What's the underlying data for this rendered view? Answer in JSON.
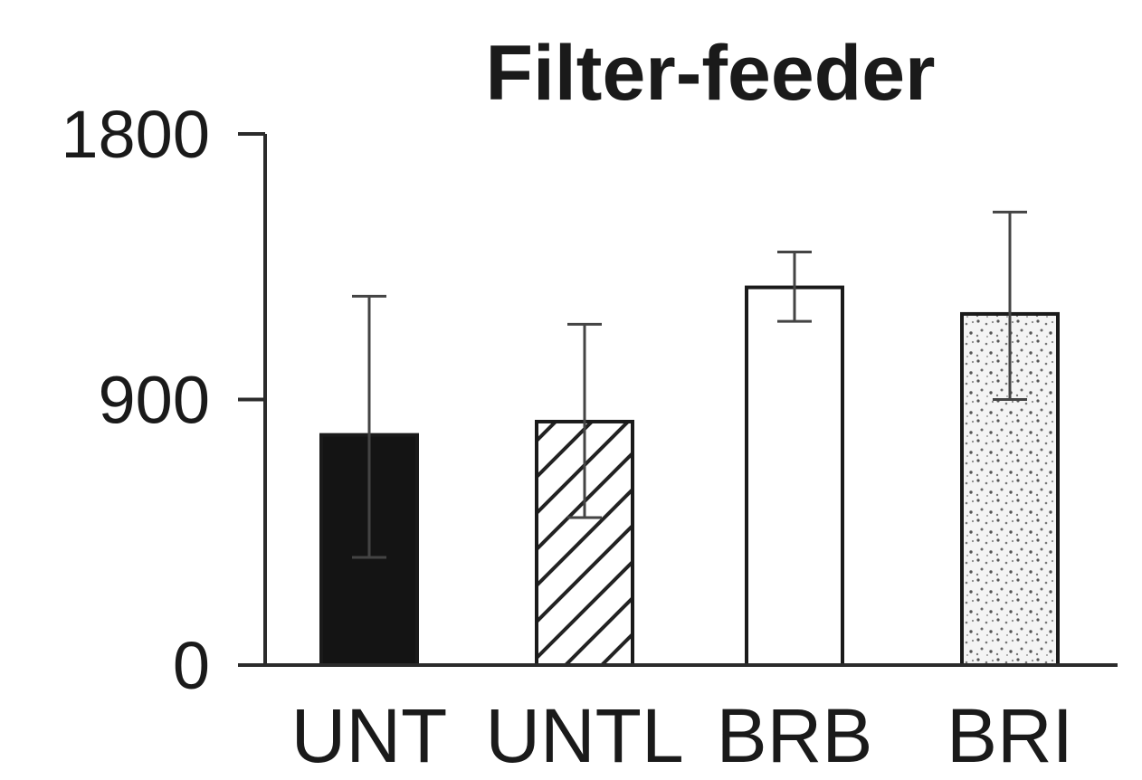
{
  "chart_data": {
    "type": "bar",
    "title": "Filter-feeder",
    "xlabel": "",
    "ylabel": "",
    "categories": [
      "UNT",
      "UNTL",
      "BRB",
      "BRI"
    ],
    "values": [
      780,
      825,
      1280,
      1190
    ],
    "error_low": [
      365,
      500,
      1165,
      900
    ],
    "error_high": [
      1250,
      1155,
      1400,
      1535
    ],
    "fill_patterns": [
      "solid-black",
      "diagonal-hatch",
      "white",
      "stipple"
    ],
    "ylim": [
      0,
      1800
    ],
    "yticks": [
      0,
      900,
      1800
    ],
    "ytick_labels": [
      "0",
      "900",
      "1800"
    ],
    "grid": false,
    "legend": "none"
  }
}
